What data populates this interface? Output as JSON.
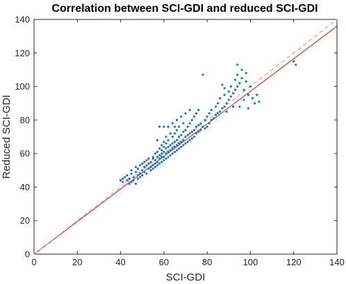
{
  "chart_data": {
    "type": "scatter",
    "title": "Correlation between SCI-GDI and reduced SCI-GDI",
    "xlabel": "SCI-GDI",
    "ylabel": "Reduced SCI-GDI",
    "xlim": [
      0,
      140
    ],
    "ylim": [
      0,
      140
    ],
    "x_ticks": [
      "0",
      "20",
      "40",
      "60",
      "80",
      "100",
      "120",
      "140"
    ],
    "y_ticks": [
      "0",
      "20",
      "40",
      "60",
      "80",
      "100",
      "120",
      "140"
    ],
    "grid": false,
    "legend": "none",
    "colors": {
      "points": "#1f77b4",
      "fit_line": "#e0383a",
      "identity_line": "#c9a99a",
      "axes": "#262626"
    },
    "lines": [
      {
        "style": "solid",
        "color": "#e0383a",
        "points": [
          [
            0,
            0
          ],
          [
            140,
            136
          ]
        ]
      },
      {
        "style": "dashed",
        "color": "#c9a99a",
        "points": [
          [
            0,
            0
          ],
          [
            140,
            140
          ]
        ]
      }
    ],
    "series": [
      {
        "points": [
          [
            40,
            44
          ],
          [
            41,
            45
          ],
          [
            41,
            43
          ],
          [
            42,
            46
          ],
          [
            43,
            44
          ],
          [
            43,
            47
          ],
          [
            44,
            42
          ],
          [
            44,
            45
          ],
          [
            45,
            43
          ],
          [
            45,
            48
          ],
          [
            45,
            50
          ],
          [
            46,
            46
          ],
          [
            46,
            44
          ],
          [
            47,
            42
          ],
          [
            47,
            49
          ],
          [
            47,
            52
          ],
          [
            48,
            45
          ],
          [
            48,
            47
          ],
          [
            48,
            51
          ],
          [
            49,
            48
          ],
          [
            49,
            53
          ],
          [
            49,
            46
          ],
          [
            50,
            50
          ],
          [
            50,
            54
          ],
          [
            50,
            47
          ],
          [
            51,
            52
          ],
          [
            51,
            49
          ],
          [
            51,
            55
          ],
          [
            52,
            48
          ],
          [
            52,
            53
          ],
          [
            52,
            56
          ],
          [
            53,
            51
          ],
          [
            53,
            54
          ],
          [
            53,
            57
          ],
          [
            54,
            50
          ],
          [
            54,
            55
          ],
          [
            54,
            52
          ],
          [
            55,
            53
          ],
          [
            55,
            57
          ],
          [
            55,
            58
          ],
          [
            55,
            51
          ],
          [
            56,
            54
          ],
          [
            56,
            52
          ],
          [
            56,
            56
          ],
          [
            56,
            60
          ],
          [
            57,
            53
          ],
          [
            57,
            55
          ],
          [
            57,
            58
          ],
          [
            57,
            61
          ],
          [
            57,
            68
          ],
          [
            58,
            54
          ],
          [
            58,
            57
          ],
          [
            58,
            59
          ],
          [
            58,
            63
          ],
          [
            58,
            76
          ],
          [
            59,
            55
          ],
          [
            59,
            58
          ],
          [
            59,
            60
          ],
          [
            59,
            62
          ],
          [
            59,
            65
          ],
          [
            60,
            56
          ],
          [
            60,
            58
          ],
          [
            60,
            61
          ],
          [
            60,
            64
          ],
          [
            60,
            67
          ],
          [
            60,
            76
          ],
          [
            61,
            57
          ],
          [
            61,
            60
          ],
          [
            61,
            63
          ],
          [
            61,
            66
          ],
          [
            61,
            70
          ],
          [
            62,
            58
          ],
          [
            62,
            61
          ],
          [
            62,
            64
          ],
          [
            62,
            68
          ],
          [
            62,
            76
          ],
          [
            63,
            59
          ],
          [
            63,
            62
          ],
          [
            63,
            65
          ],
          [
            63,
            72
          ],
          [
            64,
            60
          ],
          [
            64,
            63
          ],
          [
            64,
            66
          ],
          [
            64,
            70
          ],
          [
            64,
            78
          ],
          [
            65,
            61
          ],
          [
            65,
            64
          ],
          [
            65,
            67
          ],
          [
            65,
            72
          ],
          [
            65,
            76
          ],
          [
            66,
            62
          ],
          [
            66,
            65
          ],
          [
            66,
            68
          ],
          [
            66,
            74
          ],
          [
            66,
            80
          ],
          [
            67,
            63
          ],
          [
            67,
            66
          ],
          [
            67,
            70
          ],
          [
            67,
            76
          ],
          [
            68,
            64
          ],
          [
            68,
            67
          ],
          [
            68,
            71
          ],
          [
            68,
            82
          ],
          [
            69,
            65
          ],
          [
            69,
            68
          ],
          [
            69,
            73
          ],
          [
            69,
            78
          ],
          [
            70,
            66
          ],
          [
            70,
            70
          ],
          [
            70,
            74
          ],
          [
            70,
            84
          ],
          [
            71,
            67
          ],
          [
            71,
            71
          ],
          [
            71,
            76
          ],
          [
            72,
            68
          ],
          [
            72,
            72
          ],
          [
            72,
            78
          ],
          [
            72,
            86
          ],
          [
            73,
            69
          ],
          [
            73,
            73
          ],
          [
            73,
            80
          ],
          [
            74,
            70
          ],
          [
            74,
            74
          ],
          [
            74,
            82
          ],
          [
            75,
            72
          ],
          [
            75,
            76
          ],
          [
            75,
            84
          ],
          [
            76,
            73
          ],
          [
            76,
            77
          ],
          [
            76,
            86
          ],
          [
            77,
            74
          ],
          [
            77,
            78
          ],
          [
            78,
            76
          ],
          [
            78,
            107
          ],
          [
            79,
            75
          ],
          [
            79,
            80
          ],
          [
            80,
            76
          ],
          [
            80,
            82
          ],
          [
            81,
            78
          ],
          [
            81,
            84
          ],
          [
            82,
            80
          ],
          [
            82,
            86
          ],
          [
            83,
            81
          ],
          [
            84,
            83
          ],
          [
            84,
            88
          ],
          [
            85,
            84
          ],
          [
            85,
            90
          ],
          [
            86,
            85
          ],
          [
            86,
            93
          ],
          [
            87,
            87
          ],
          [
            87,
            101
          ],
          [
            88,
            88
          ],
          [
            88,
            95
          ],
          [
            88,
            99
          ],
          [
            89,
            90
          ],
          [
            89,
            85
          ],
          [
            90,
            92
          ],
          [
            90,
            97
          ],
          [
            91,
            94
          ],
          [
            91,
            100
          ],
          [
            92,
            96
          ],
          [
            92,
            88
          ],
          [
            93,
            98
          ],
          [
            93,
            104
          ],
          [
            94,
            100
          ],
          [
            94,
            107
          ],
          [
            94,
            113
          ],
          [
            95,
            102
          ],
          [
            95,
            88
          ],
          [
            96,
            105
          ],
          [
            96,
            110
          ],
          [
            97,
            98
          ],
          [
            97,
            92
          ],
          [
            98,
            103
          ],
          [
            98,
            108
          ],
          [
            99,
            95
          ],
          [
            99,
            87
          ],
          [
            100,
            100
          ],
          [
            101,
            93
          ],
          [
            102,
            90
          ],
          [
            103,
            95
          ],
          [
            104,
            91
          ],
          [
            120,
            115
          ],
          [
            121,
            113
          ]
        ]
      }
    ]
  }
}
